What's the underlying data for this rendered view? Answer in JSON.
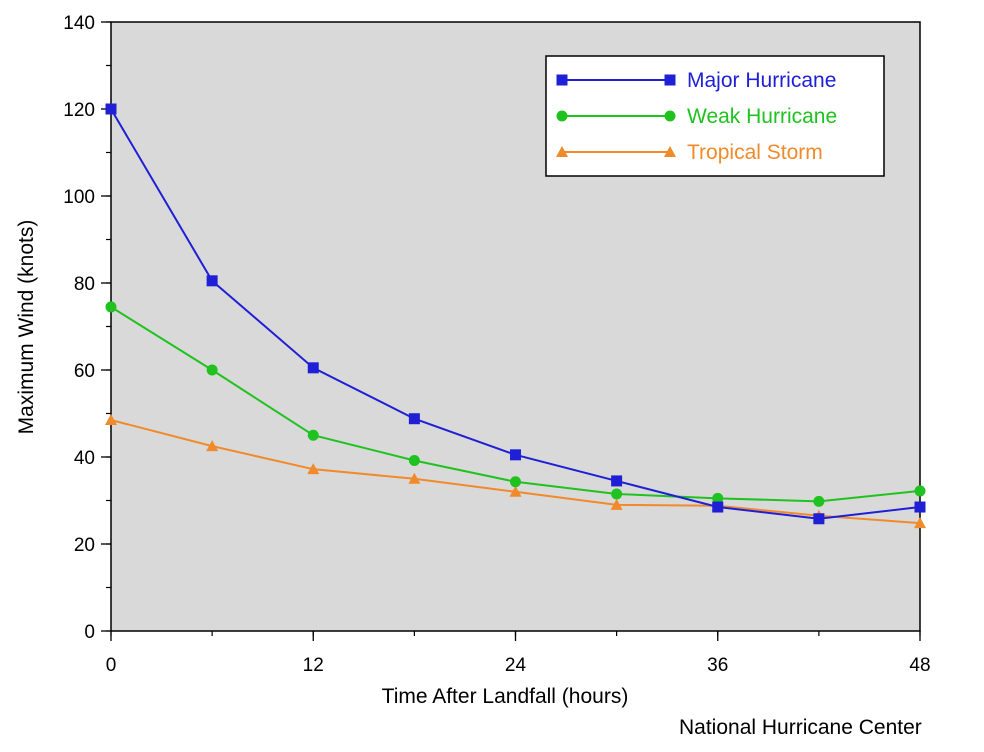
{
  "chart_data": {
    "type": "line",
    "xlabel": "Time After Landfall (hours)",
    "ylabel": "Maximum Wind (knots)",
    "xlim": [
      0,
      48
    ],
    "ylim": [
      0,
      140
    ],
    "x_ticks": [
      0,
      12,
      24,
      36,
      48
    ],
    "y_ticks": [
      0,
      20,
      40,
      60,
      80,
      100,
      120,
      140
    ],
    "x_minor_step": 6,
    "y_minor_step": 10,
    "x": [
      0,
      6,
      12,
      18,
      24,
      30,
      36,
      42,
      48
    ],
    "grid": false,
    "legend_position": "top-right",
    "series": [
      {
        "name": "Major Hurricane",
        "marker": "square",
        "color": "#1f1fd6",
        "values": [
          120,
          80.5,
          60.5,
          48.8,
          40.5,
          34.5,
          28.5,
          25.8,
          28.5
        ]
      },
      {
        "name": "Weak Hurricane",
        "marker": "circle",
        "color": "#1fc21f",
        "values": [
          74.5,
          60,
          45,
          39.2,
          34.3,
          31.5,
          30.5,
          29.8,
          32.2
        ]
      },
      {
        "name": "Tropical Storm",
        "marker": "triangle",
        "color": "#f08a2a",
        "values": [
          48.5,
          42.5,
          37.2,
          35,
          32,
          29,
          28.8,
          26.5,
          24.8
        ]
      }
    ]
  },
  "source_credit": "National Hurricane Center",
  "plot_background": "#d9d9d9"
}
